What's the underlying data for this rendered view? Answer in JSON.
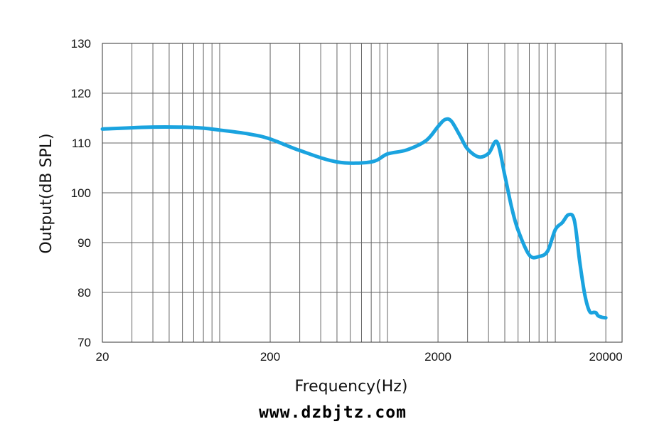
{
  "chart_data": {
    "type": "line",
    "xlabel": "Frequency(Hz)",
    "ylabel": "Output(dB SPL)",
    "x_scale": "log",
    "xlim": [
      20,
      25000
    ],
    "ylim": [
      70,
      130
    ],
    "x_ticks": [
      20,
      200,
      2000,
      20000
    ],
    "x_tick_labels": [
      "20",
      "200",
      "2000",
      "20000"
    ],
    "y_ticks": [
      70,
      80,
      90,
      100,
      110,
      120,
      130
    ],
    "y_tick_labels": [
      "70",
      "80",
      "90",
      "100",
      "110",
      "120",
      "130"
    ],
    "grid": true,
    "line_color": "#1aa3df",
    "series": [
      {
        "x": [
          20,
          40,
          70,
          100,
          150,
          200,
          300,
          500,
          800,
          1000,
          1300,
          1700,
          2000,
          2200,
          2400,
          2700,
          3000,
          3500,
          4000,
          4500,
          5000,
          5500,
          6000,
          7000,
          8000,
          9000,
          10000,
          11000,
          12000,
          13000,
          14000,
          15000,
          16000,
          17000,
          17500,
          18000,
          19000,
          20000
        ],
        "y": [
          112.8,
          113.2,
          113.1,
          112.6,
          111.8,
          110.8,
          108.5,
          106.2,
          106.2,
          107.8,
          108.6,
          110.5,
          113.3,
          114.7,
          114.4,
          111.5,
          108.8,
          107.2,
          107.9,
          110.2,
          103.5,
          97,
          92.5,
          87.5,
          87.2,
          88.3,
          92.6,
          94,
          95.6,
          94.4,
          86,
          79.5,
          76.2,
          76,
          75.9,
          75.3,
          75,
          74.9
        ]
      }
    ]
  },
  "watermark": "www.dzbjtz.com"
}
